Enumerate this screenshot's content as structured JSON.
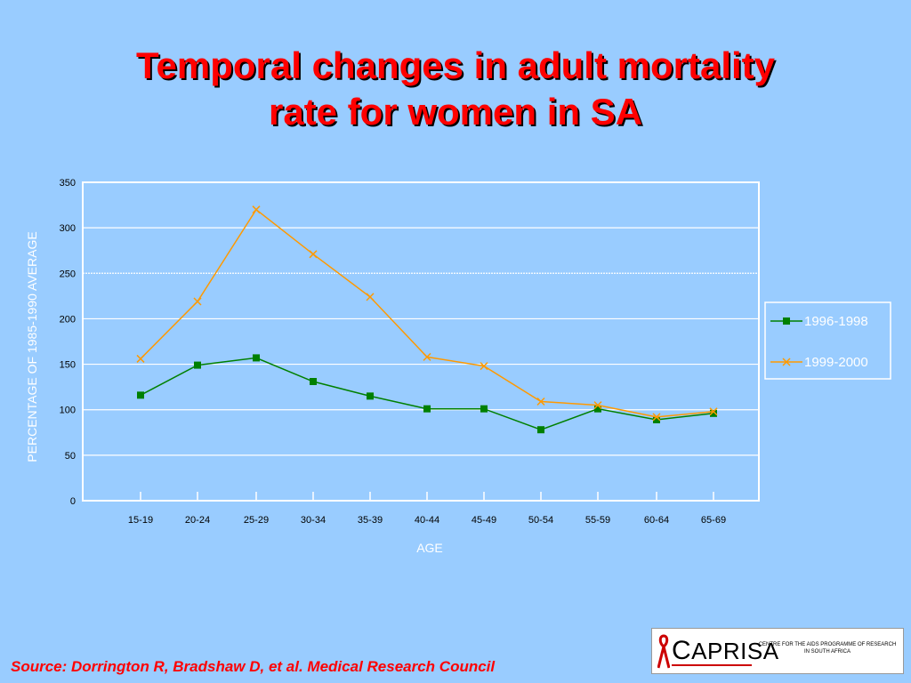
{
  "slide": {
    "title_line1": "Temporal changes in adult mortality",
    "title_line2": "rate for women in SA",
    "source": "Source: Dorrington R, Bradshaw  D, et al. Medical Research Council"
  },
  "logo": {
    "name_initial": "C",
    "name_rest": "APRISA",
    "subtitle": "CENTRE FOR THE AIDS PROGRAMME OF RESEARCH IN SOUTH AFRICA"
  },
  "chart_data": {
    "type": "line",
    "title": "",
    "xlabel": "AGE",
    "ylabel": "PERCENTAGE OF 1985-1990 AVERAGE",
    "categories": [
      "15-19",
      "20-24",
      "25-29",
      "30-34",
      "35-39",
      "40-44",
      "45-49",
      "50-54",
      "55-59",
      "60-64",
      "65-69"
    ],
    "ylim": [
      0,
      350
    ],
    "yticks": [
      0,
      50,
      100,
      150,
      200,
      250,
      300,
      350
    ],
    "grid": true,
    "legend_position": "right",
    "series": [
      {
        "name": "1996-1998",
        "color": "#008000",
        "marker": "square",
        "values": [
          116,
          149,
          157,
          131,
          115,
          101,
          101,
          78,
          101,
          89,
          96
        ]
      },
      {
        "name": "1999-2000",
        "color": "#ff9900",
        "marker": "x",
        "values": [
          156,
          219,
          320,
          271,
          224,
          158,
          148,
          109,
          105,
          92,
          98
        ]
      }
    ]
  },
  "colors": {
    "background": "#99ccff",
    "title": "#ff0000",
    "grid": "#ffffff"
  }
}
